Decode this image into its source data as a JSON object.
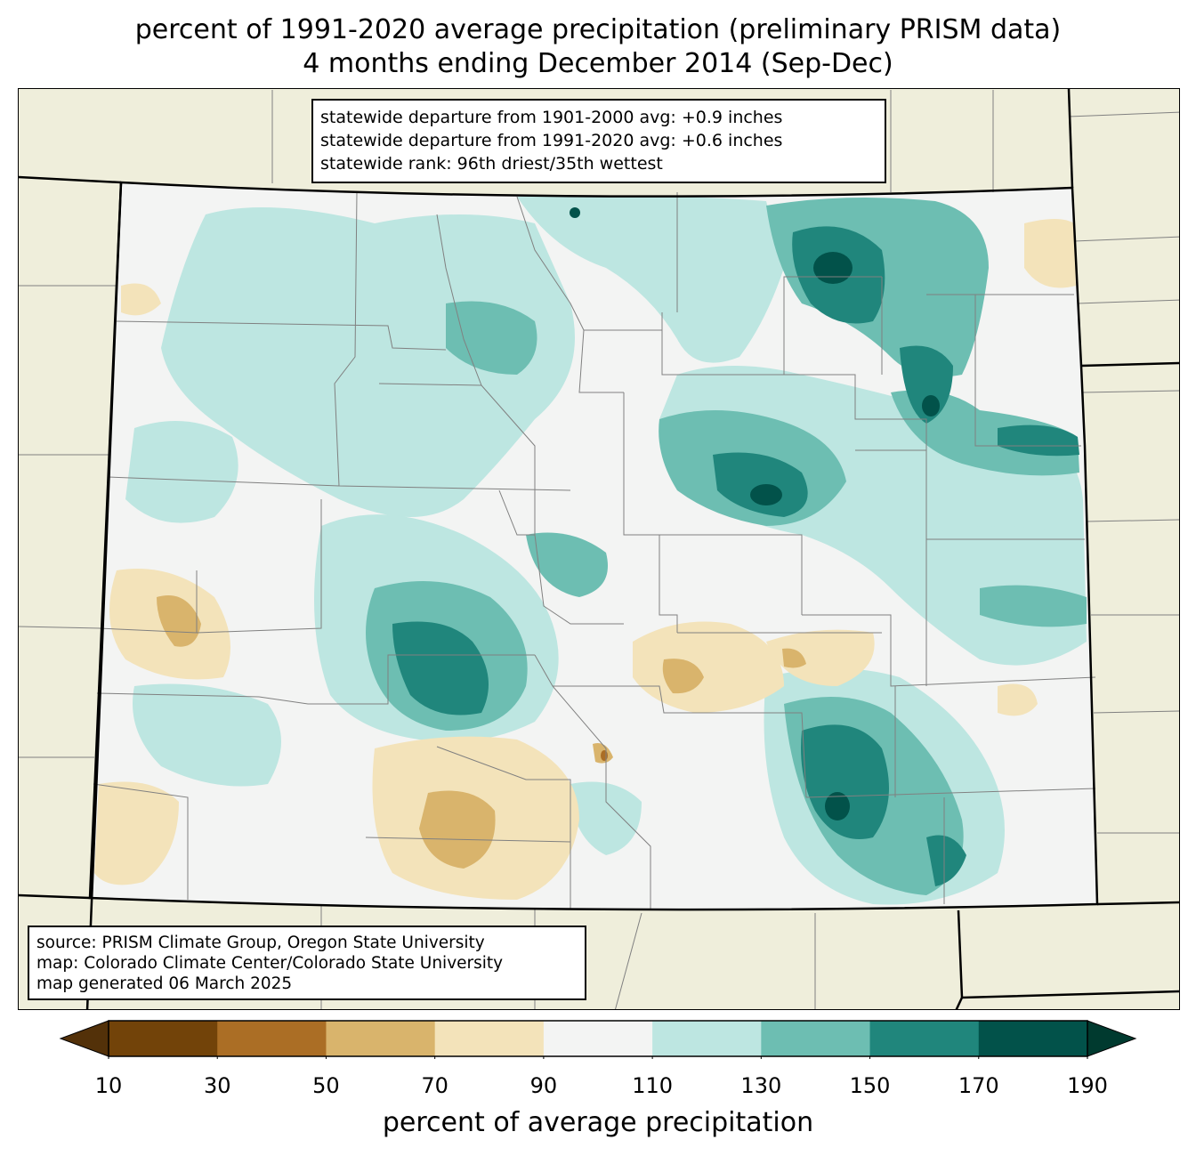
{
  "title": {
    "line1": "percent of 1991-2020 average precipitation (preliminary PRISM data)",
    "line2": "4 months ending December 2014 (Sep-Dec)"
  },
  "stats": {
    "line1": "statewide departure from 1901-2000 avg: +0.9 inches",
    "line2": "statewide departure from 1991-2020 avg: +0.6 inches",
    "line3": "statewide rank: 96th driest/35th wettest"
  },
  "source": {
    "line1": "source: PRISM Climate Group, Oregon State University",
    "line2": "map: Colorado Climate Center/Colorado State University",
    "line3": "map generated 06 March 2025"
  },
  "colorbar": {
    "label": "percent of average precipitation",
    "ticks": [
      "10",
      "30",
      "50",
      "70",
      "90",
      "110",
      "130",
      "150",
      "170",
      "190"
    ],
    "colors": [
      "#724309",
      "#ab6e25",
      "#d9b46c",
      "#f3e3ba",
      "#f3f4f3",
      "#bde6e1",
      "#6dbeb2",
      "#20867c",
      "#02524a"
    ],
    "under_color": "#533109",
    "over_color": "#003a2f"
  },
  "map_colors": {
    "background": "#efeedb",
    "state_border": "#000000",
    "county_border": "#808080"
  }
}
